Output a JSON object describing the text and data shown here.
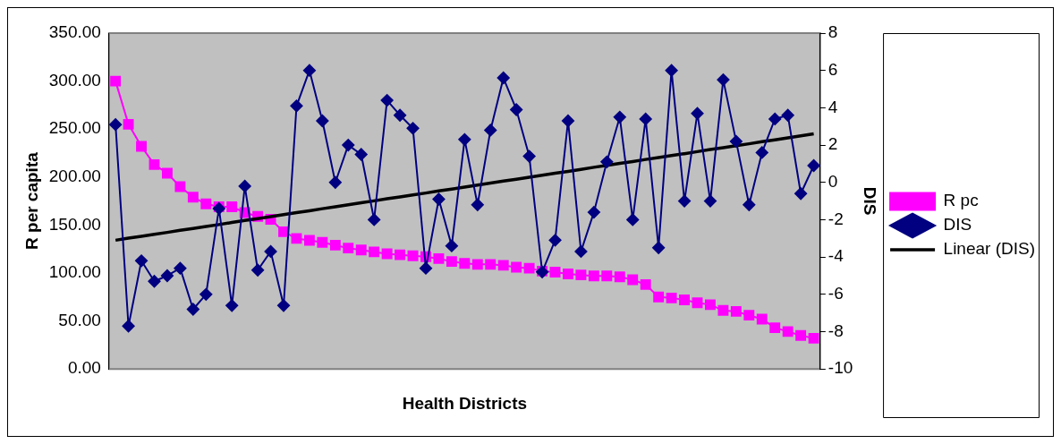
{
  "chart_data": {
    "type": "line",
    "xlabel": "Health Districts",
    "ylabel": "R per capita",
    "y2label": "DIS",
    "categories": [
      null,
      null,
      null,
      null,
      null,
      null,
      null,
      null,
      null,
      null,
      null,
      null,
      null,
      null,
      null,
      null,
      null,
      null,
      null,
      null,
      null,
      null,
      null,
      null,
      null,
      null,
      null,
      null,
      null,
      null,
      null,
      null,
      null,
      null,
      null,
      null,
      null,
      null,
      null,
      null,
      null,
      null,
      null,
      null,
      null,
      null,
      null,
      null,
      null,
      null,
      null,
      null,
      null,
      null,
      null
    ],
    "series": [
      {
        "name": "R pc",
        "color": "#ff00ff",
        "marker": "square",
        "values": [
          300,
          255,
          232,
          213,
          204,
          190,
          179,
          172,
          169,
          169,
          163,
          159,
          156,
          143,
          136,
          134,
          132,
          129,
          126,
          124,
          122,
          120,
          119,
          118,
          117,
          115,
          112,
          110,
          109,
          109,
          108,
          106,
          105,
          102,
          101,
          99,
          98,
          97,
          97,
          96,
          93,
          88,
          75,
          74,
          72,
          69,
          67,
          61,
          60,
          56,
          52,
          43,
          39,
          35,
          32
        ]
      },
      {
        "name": "DIS",
        "color": "#000080",
        "marker": "diamond",
        "axis": "y2",
        "values": [
          3.1,
          -7.7,
          -4.2,
          -5.3,
          -5.0,
          -4.6,
          -6.8,
          -6.0,
          -1.4,
          -6.6,
          -0.2,
          -4.7,
          -3.7,
          -6.6,
          4.1,
          6.0,
          3.3,
          0.0,
          2.0,
          1.5,
          -2.0,
          4.4,
          3.6,
          2.9,
          -4.6,
          -0.9,
          -3.4,
          2.3,
          -1.2,
          2.8,
          5.6,
          3.9,
          1.4,
          -4.8,
          -3.1,
          3.3,
          -3.7,
          -1.6,
          1.1,
          3.5,
          -2.0,
          3.4,
          -3.5,
          6.0,
          -1.0,
          3.7,
          -1.0,
          5.5,
          2.2,
          -1.2,
          1.6,
          3.4,
          3.6,
          -0.6,
          0.9
        ]
      },
      {
        "name": "Linear (DIS)",
        "color": "#000000",
        "marker": "none",
        "axis": "y2",
        "values": [
          -3.1,
          -2.99,
          -2.89,
          -2.78,
          -2.68,
          -2.57,
          -2.47,
          -2.36,
          -2.26,
          -2.15,
          -2.04,
          -1.94,
          -1.83,
          -1.73,
          -1.62,
          -1.52,
          -1.41,
          -1.31,
          -1.2,
          -1.09,
          -0.99,
          -0.88,
          -0.78,
          -0.67,
          -0.57,
          -0.46,
          -0.36,
          -0.25,
          -0.14,
          -0.04,
          0.07,
          0.17,
          0.28,
          0.38,
          0.49,
          0.59,
          0.7,
          0.81,
          0.91,
          1.02,
          1.12,
          1.23,
          1.33,
          1.44,
          1.54,
          1.65,
          1.76,
          1.86,
          1.97,
          2.07,
          2.18,
          2.28,
          2.39,
          2.49,
          2.6
        ]
      }
    ],
    "ylim": [
      0,
      350
    ],
    "yticks": [
      {
        "value": 0,
        "label": "0.00"
      },
      {
        "value": 50,
        "label": "50.00"
      },
      {
        "value": 100,
        "label": "100.00"
      },
      {
        "value": 150,
        "label": "150.00"
      },
      {
        "value": 200,
        "label": "200.00"
      },
      {
        "value": 250,
        "label": "250.00"
      },
      {
        "value": 300,
        "label": "300.00"
      },
      {
        "value": 350,
        "label": "350.00"
      }
    ],
    "y2lim": [
      -10,
      8
    ],
    "y2ticks": [
      -10,
      -8,
      -6,
      -4,
      -2,
      0,
      2,
      4,
      6,
      8
    ],
    "tick_labels": "y",
    "grid": false,
    "legend": "right"
  }
}
